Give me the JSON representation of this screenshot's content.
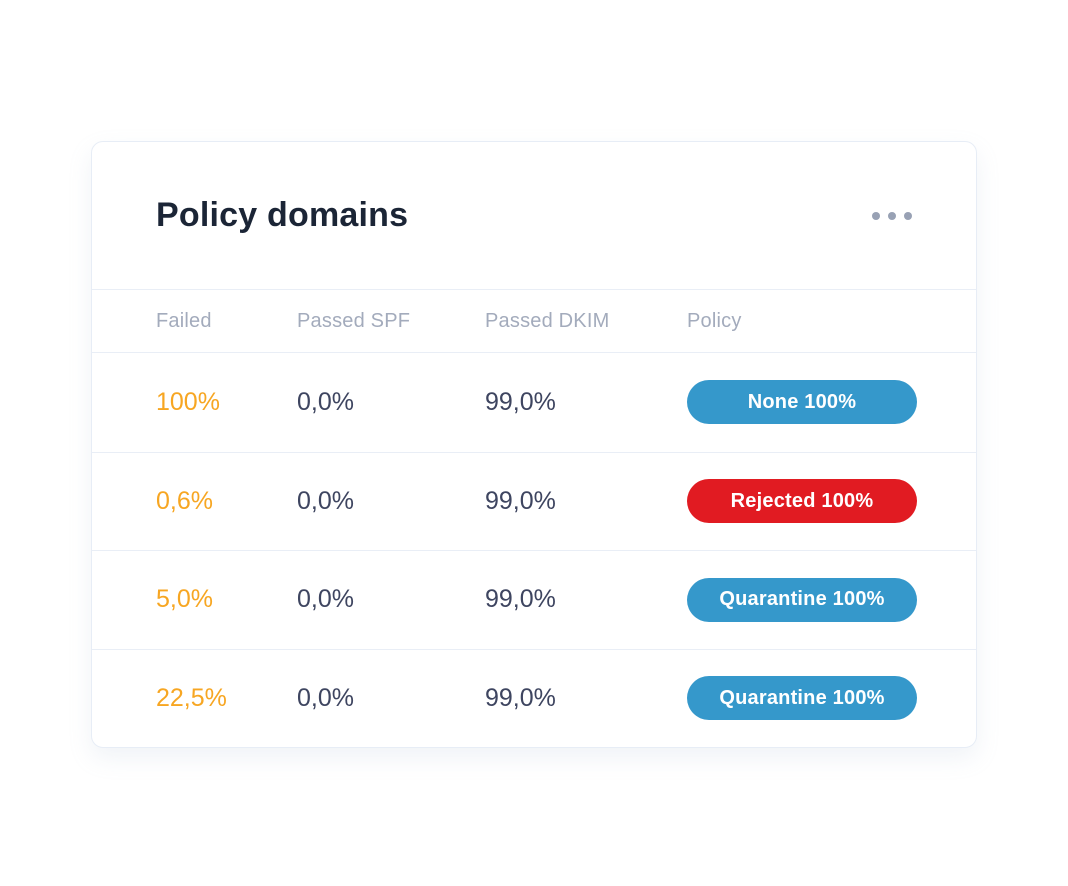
{
  "card": {
    "title": "Policy domains",
    "columns": {
      "failed": "Failed",
      "passed_spf": "Passed SPF",
      "passed_dkim": "Passed DKIM",
      "policy": "Policy"
    },
    "rows": [
      {
        "failed": "100%",
        "passed_spf": "0,0%",
        "passed_dkim": "99,0%",
        "policy": {
          "label": "None 100%",
          "color": "#3598cb"
        }
      },
      {
        "failed": "0,6%",
        "passed_spf": "0,0%",
        "passed_dkim": "99,0%",
        "policy": {
          "label": "Rejected 100%",
          "color": "#e11b22"
        }
      },
      {
        "failed": "5,0%",
        "passed_spf": "0,0%",
        "passed_dkim": "99,0%",
        "policy": {
          "label": "Quarantine 100%",
          "color": "#3598cb"
        }
      },
      {
        "failed": "22,5%",
        "passed_spf": "0,0%",
        "passed_dkim": "99,0%",
        "policy": {
          "label": "Quarantine 100%",
          "color": "#3598cb"
        }
      }
    ],
    "colors": {
      "failed_text": "#f7a622",
      "value_text": "#3e4560",
      "title_text": "#1b2536",
      "header_text": "#a3abbc",
      "badge_blue": "#3598cb",
      "badge_red": "#e11b22",
      "row_border": "#e9eef6",
      "card_border": "#e7edf6"
    }
  }
}
